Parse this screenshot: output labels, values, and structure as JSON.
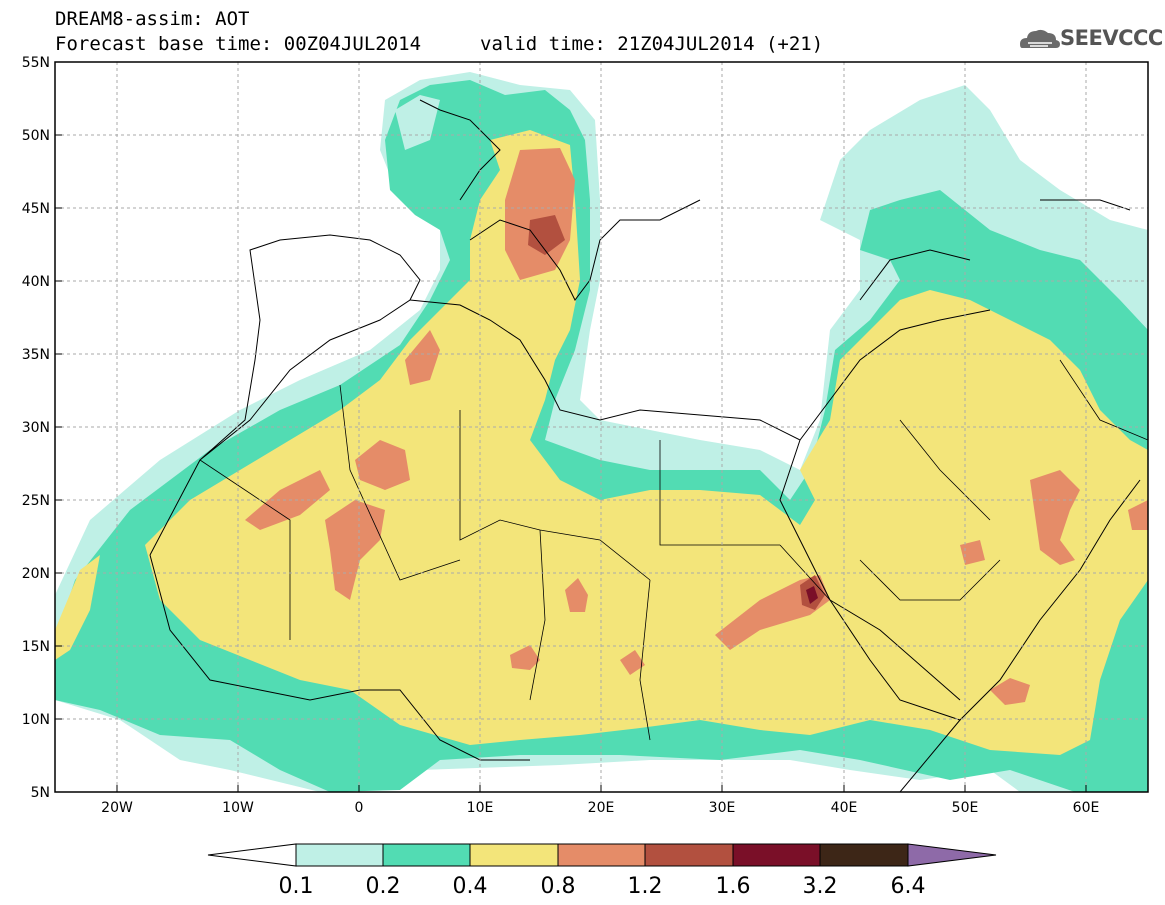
{
  "title": {
    "line1": "DREAM8-assim: AOT",
    "base_time": "Forecast base time: 00Z04JUL2014",
    "valid_time": "valid time: 21Z04JUL2014 (+21)"
  },
  "logo": {
    "text": "SEEVCCC",
    "icon": "cloud-icon"
  },
  "axes": {
    "lat_labels": [
      "55N",
      "50N",
      "45N",
      "40N",
      "35N",
      "30N",
      "25N",
      "20N",
      "15N",
      "10N",
      "5N"
    ],
    "lon_labels": [
      "20W",
      "10W",
      "0",
      "10E",
      "20E",
      "30E",
      "40E",
      "50E",
      "60E"
    ],
    "lon_range": [
      -25,
      65
    ],
    "lat_range": [
      5,
      55
    ]
  },
  "colorbar": {
    "labels": [
      "0.1",
      "0.2",
      "0.4",
      "0.8",
      "1.2",
      "1.6",
      "3.2",
      "6.4"
    ],
    "colors": [
      "#ffffff",
      "#bff0e6",
      "#52dcb3",
      "#f3e57a",
      "#e58c68",
      "#b2503f",
      "#7a0f28",
      "#3d2617",
      "#8e6aa8"
    ]
  },
  "legend_colors": {
    "c01": "#bff0e6",
    "c02": "#52dcb3",
    "c04": "#f3e57a",
    "c08": "#e58c68",
    "c12": "#b2503f",
    "c16": "#7a0f28"
  }
}
